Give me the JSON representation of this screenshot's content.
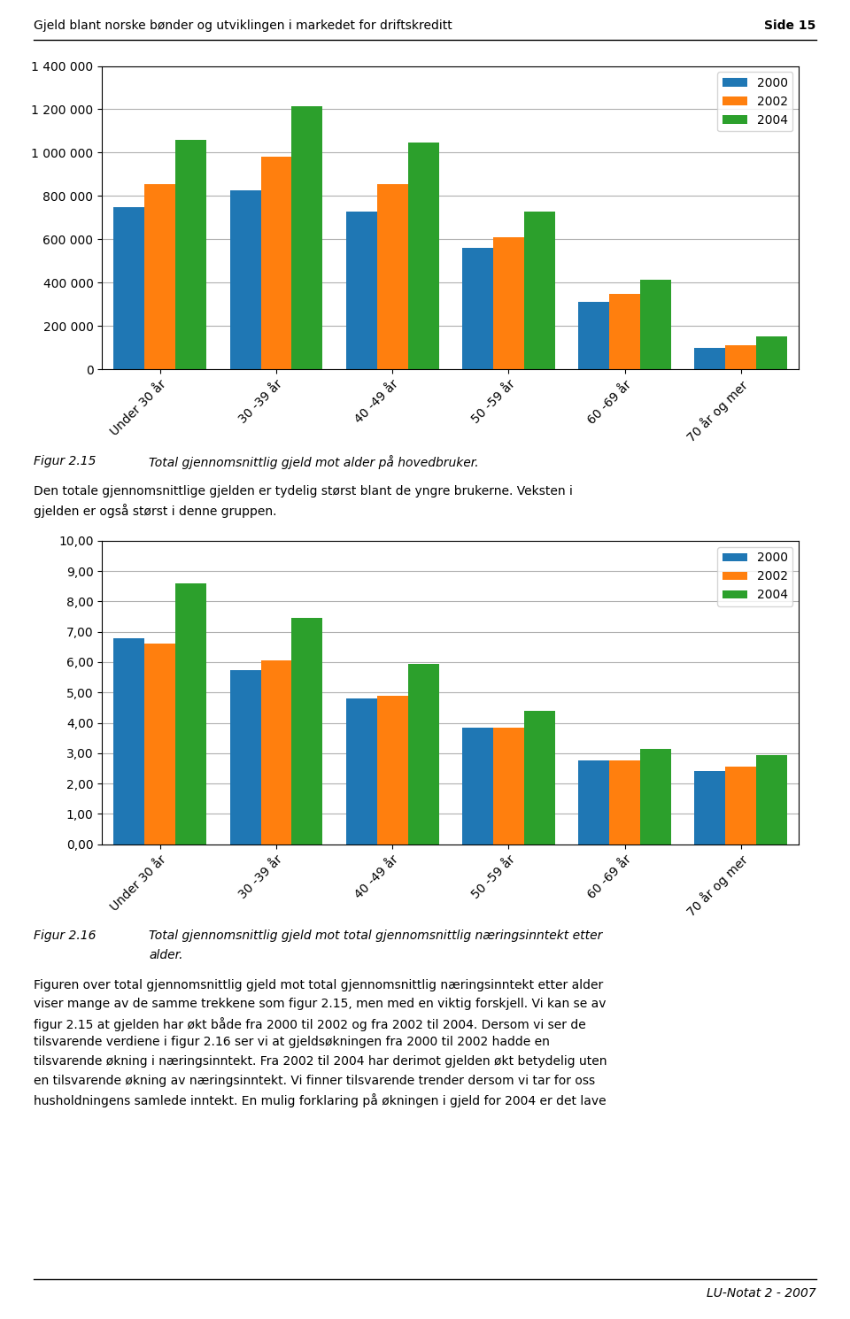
{
  "chart_data": [
    {
      "type": "bar",
      "categories": [
        "Under 30 år",
        "30 -39 år",
        "40 -49 år",
        "50 -59 år",
        "60 -69 år",
        "70 år og mer"
      ],
      "series": [
        {
          "name": "2000",
          "values": [
            750000,
            825000,
            730000,
            560000,
            310000,
            100000
          ]
        },
        {
          "name": "2002",
          "values": [
            855000,
            980000,
            855000,
            610000,
            350000,
            110000
          ]
        },
        {
          "name": "2004",
          "values": [
            1060000,
            1215000,
            1045000,
            730000,
            415000,
            150000
          ]
        }
      ],
      "ylim": [
        0,
        1400000
      ],
      "yticks": [
        0,
        {
          "value": 200000,
          "label": "200 000"
        },
        {
          "value": 400000,
          "label": "400 000"
        },
        {
          "value": 600000,
          "label": "600 000"
        },
        {
          "value": 800000,
          "label": "800 000"
        },
        {
          "value": 1000000,
          "label": "1 000 000"
        },
        {
          "value": 1200000,
          "label": "1 200 000"
        },
        {
          "value": 1400000,
          "label": "1 400 000"
        }
      ],
      "grid": true,
      "legend": "upper right",
      "annotations": {
        "header": [
          "Gjeld blant norske bønder og utviklingen i markedet for driftskreditt",
          "Side 15"
        ],
        "caption": {
          "label": "Figur 2.15",
          "lines": [
            "Total gjennomsnittlig gjeld mot alder på hovedbruker."
          ]
        },
        "body": [
          "Den totale gjennomsnittlige gjelden er tydelig størst blant de yngre brukerne. Veksten i",
          "gjelden er også størst i denne gruppen."
        ]
      }
    },
    {
      "type": "bar",
      "categories": [
        "Under 30 år",
        "30 -39 år",
        "40 -49 år",
        "50 -59 år",
        "60 -69 år",
        "70 år og mer"
      ],
      "series": [
        {
          "name": "2000",
          "values": [
            6.8,
            5.75,
            4.8,
            3.85,
            2.75,
            2.4
          ]
        },
        {
          "name": "2002",
          "values": [
            6.6,
            6.05,
            4.9,
            3.85,
            2.75,
            2.55
          ]
        },
        {
          "name": "2004",
          "values": [
            8.6,
            7.45,
            5.95,
            4.4,
            3.15,
            2.95
          ]
        }
      ],
      "ylim": [
        0,
        10
      ],
      "yticks": [
        {
          "value": 0,
          "label": "0,00"
        },
        {
          "value": 1.0,
          "label": "1,00"
        },
        {
          "value": 2.0,
          "label": "2,00"
        },
        {
          "value": 3.0,
          "label": "3,00"
        },
        {
          "value": 4.0,
          "label": "4,00"
        },
        {
          "value": 5.0,
          "label": "5,00"
        },
        {
          "value": 6.0,
          "label": "6,00"
        },
        {
          "value": 7.0,
          "label": "7,00"
        },
        {
          "value": 8.0,
          "label": "8,00"
        },
        {
          "value": 9.0,
          "label": "9,00"
        },
        {
          "value": 10.0,
          "label": "10,00"
        }
      ],
      "grid": true,
      "legend": "upper right",
      "annotations": {
        "caption": {
          "label": "Figur 2.16",
          "lines": [
            "Total gjennomsnittlig gjeld mot total gjennomsnittlig næringsinntekt etter",
            "alder."
          ]
        },
        "body": [
          "Figuren over total gjennomsnittlig gjeld mot total gjennomsnittlig næringsinntekt etter alder",
          "viser mange av de samme trekkene som figur 2.15, men med en viktig forskjell. Vi kan se av",
          "figur 2.15 at gjelden har økt både fra 2000 til 2002 og fra 2002 til 2004. Dersom vi ser de",
          "tilsvarende verdiene i figur 2.16 ser vi at gjeldsøkningen fra 2000 til 2002 hadde en",
          "tilsvarende økning i næringsinntekt. Fra 2002 til 2004 har derimot gjelden økt betydelig uten",
          "en tilsvarende økning av næringsinntekt. Vi finner tilsvarende trender dersom vi tar for oss",
          "husholdningens samlede inntekt. En mulig forklaring på økningen i gjeld for 2004 er det lave"
        ],
        "footer": [
          "LU-Notat 2 - 2007"
        ]
      }
    }
  ]
}
